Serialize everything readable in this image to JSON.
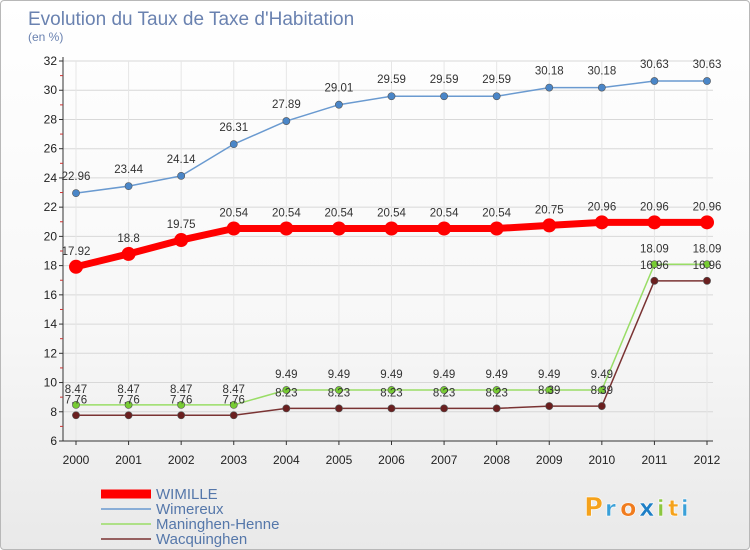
{
  "chart_data": {
    "type": "line",
    "title": "Evolution du Taux de Taxe d'Habitation",
    "subtitle": "(en %)",
    "xlabel": "",
    "ylabel": "",
    "categories": [
      "2000",
      "2001",
      "2002",
      "2003",
      "2004",
      "2005",
      "2006",
      "2007",
      "2008",
      "2009",
      "2010",
      "2011",
      "2012"
    ],
    "ylim": [
      6,
      32
    ],
    "yticks": [
      6,
      8,
      10,
      12,
      14,
      16,
      18,
      20,
      22,
      24,
      26,
      28,
      30,
      32
    ],
    "grid": true,
    "legend_position": "bottom-left",
    "series": [
      {
        "name": "WIMILLE",
        "color": "#ff0000",
        "values": [
          17.92,
          18.8,
          19.75,
          20.54,
          20.54,
          20.54,
          20.54,
          20.54,
          20.54,
          20.75,
          20.96,
          20.96,
          20.96
        ],
        "labels": [
          "17.92",
          "18.8",
          "19.75",
          "20.54",
          "20.54",
          "20.54",
          "20.54",
          "20.54",
          "20.54",
          "20.75",
          "20.96",
          "20.96",
          "20.96"
        ]
      },
      {
        "name": "Wimereux",
        "color": "#6a9ad0",
        "values": [
          22.96,
          23.44,
          24.14,
          26.31,
          27.89,
          29.01,
          29.59,
          29.59,
          29.59,
          30.18,
          30.18,
          30.63,
          30.63
        ],
        "labels": [
          "22.96",
          "23.44",
          "24.14",
          "26.31",
          "27.89",
          "29.01",
          "29.59",
          "29.59",
          "29.59",
          "30.18",
          "30.18",
          "30.63",
          "30.63"
        ]
      },
      {
        "name": "Maninghen-Henne",
        "color": "#99dd66",
        "values": [
          8.47,
          8.47,
          8.47,
          8.47,
          9.49,
          9.49,
          9.49,
          9.49,
          9.49,
          9.49,
          9.49,
          18.09,
          18.09
        ],
        "labels": [
          "8.47",
          "8.47",
          "8.47",
          "8.47",
          "9.49",
          "9.49",
          "9.49",
          "9.49",
          "9.49",
          "9.49",
          "9.49",
          "18.09",
          "18.09"
        ]
      },
      {
        "name": "Wacquinghen",
        "color": "#7a3333",
        "values": [
          7.76,
          7.76,
          7.76,
          7.76,
          8.23,
          8.23,
          8.23,
          8.23,
          8.23,
          8.39,
          8.39,
          16.96,
          16.96
        ],
        "labels": [
          "7.76",
          "7.76",
          "7.76",
          "7.76",
          "8.23",
          "8.23",
          "8.23",
          "8.23",
          "8.23",
          "8.39",
          "8.39",
          "16.96",
          "16.96"
        ]
      }
    ]
  },
  "logo": {
    "text": "Proxiti",
    "letters": [
      {
        "ch": "P",
        "color": "#f5a21b"
      },
      {
        "ch": "r",
        "color": "#3aa0d8"
      },
      {
        "ch": "o",
        "color": "#f07c1e"
      },
      {
        "ch": "x",
        "color": "#1e7fc6"
      },
      {
        "ch": "i",
        "color": "#8cc63f"
      },
      {
        "ch": "t",
        "color": "#f5a21b"
      },
      {
        "ch": "i",
        "color": "#3aa0d8"
      }
    ]
  }
}
